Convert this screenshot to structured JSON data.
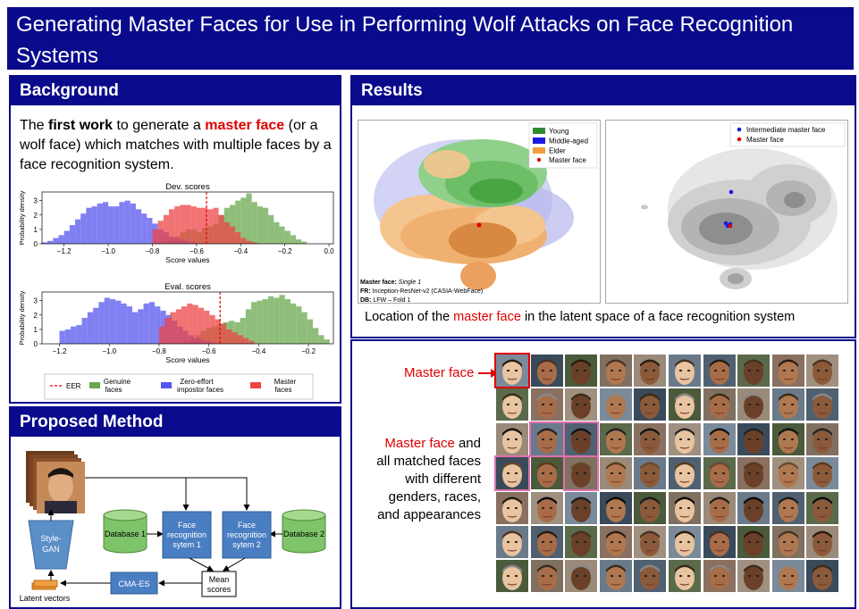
{
  "title": "Generating Master Faces for Use in Performing Wolf Attacks on Face Recognition Systems",
  "background": {
    "heading": "Background",
    "text_pre": "The ",
    "text_bold": "first work",
    "text_mid": " to generate a ",
    "text_red": "master face",
    "text_post": " (or a wolf face) which matches with multiple faces by a face recognition system."
  },
  "results": {
    "heading": "Results",
    "latent_caption_pre": "Location of the ",
    "latent_caption_red": "master face",
    "latent_caption_post": " in the latent space of a face recognition system",
    "left_legend": [
      "Young",
      "Middle-aged",
      "Elder",
      "Master face"
    ],
    "right_legend": [
      "Intermediate master face",
      "Master face"
    ],
    "info_master_label": "Master face: ",
    "info_master_value": "Single 1",
    "info_fr_label": "FR: ",
    "info_fr_value": "Inception-ResNet-v2 (CASIA-WebFace)",
    "info_db_label": "DB: ",
    "info_db_value": "LFW – Fold 1",
    "grid_master_label": "Master face",
    "grid_text_red": "Master face",
    "grid_text_1": " and",
    "grid_text_2": "all matched faces",
    "grid_text_3": "with different",
    "grid_text_4": "genders, races,",
    "grid_text_5": "and appearances"
  },
  "method": {
    "heading": "Proposed Method",
    "stylegan": "Style-GAN",
    "stylegan_l1": "Style-",
    "stylegan_l2": "GAN",
    "latent": "Latent vectors",
    "db1": "Database 1",
    "db2": "Database 2",
    "frs1_l1": "Face",
    "frs1_l2": "recognition",
    "frs1_l3": "sytem 1",
    "frs2_l1": "Face",
    "frs2_l2": "recognition",
    "frs2_l3": "sytem 2",
    "cmaes": "CMA-ES",
    "mean_l1": "Mean",
    "mean_l2": "scores"
  },
  "chart_data": [
    {
      "type": "bar",
      "title": "Dev. scores",
      "xlabel": "Score values",
      "ylabel": "Probability density",
      "xlim": [
        -1.3,
        0.02
      ],
      "ylim": [
        0,
        3.6
      ],
      "xticks": [
        -1.2,
        -1.0,
        -0.8,
        -0.6,
        -0.4,
        -0.2,
        0.0
      ],
      "xtick_labels": [
        "−1.2",
        "−1.0",
        "−0.8",
        "−0.6",
        "−0.4",
        "−0.2",
        "0.0"
      ],
      "yticks": [
        0,
        1,
        2,
        3
      ],
      "eer_x": -0.555,
      "series": [
        {
          "name": "Genuine faces",
          "color": "#6aa84f",
          "bin_start": -0.8,
          "bin_width": 0.025,
          "values": [
            0.1,
            0.15,
            0.3,
            0.3,
            0.5,
            0.8,
            1.0,
            1.0,
            0.8,
            1.1,
            1.2,
            1.4,
            2.0,
            2.5,
            2.7,
            3.0,
            3.2,
            3.5,
            2.9,
            2.6,
            2.5,
            2.0,
            1.5,
            1.2,
            0.9,
            0.6,
            0.3,
            0.15
          ]
        },
        {
          "name": "Zero-effort impostor faces",
          "color": "#5555ee",
          "bin_start": -1.3,
          "bin_width": 0.025,
          "values": [
            0.1,
            0.2,
            0.4,
            0.6,
            0.9,
            1.3,
            1.7,
            2.1,
            2.5,
            2.6,
            2.8,
            2.9,
            2.6,
            2.6,
            2.9,
            3.0,
            2.8,
            2.4,
            2.1,
            1.8,
            1.4,
            1.0,
            0.8,
            0.5,
            0.4,
            0.3,
            0.2,
            0.1
          ]
        },
        {
          "name": "Master faces",
          "color": "#ee4444",
          "bin_start": -0.8,
          "bin_width": 0.025,
          "values": [
            1.0,
            1.6,
            2.0,
            2.4,
            2.6,
            2.7,
            2.7,
            2.6,
            2.5,
            2.5,
            2.4,
            2.5,
            2.0,
            1.5,
            1.2,
            0.8,
            0.4,
            0.2,
            0.1
          ]
        }
      ],
      "legend": [
        "EER",
        "Genuine faces",
        "Zero-effort impostor faces",
        "Master faces"
      ]
    },
    {
      "type": "bar",
      "title": "Eval. scores",
      "xlabel": "Score values",
      "ylabel": "Probability density",
      "xlim": [
        -1.27,
        -0.1
      ],
      "ylim": [
        0,
        3.6
      ],
      "xticks": [
        -1.2,
        -1.0,
        -0.8,
        -0.6,
        -0.4,
        -0.2
      ],
      "xtick_labels": [
        "−1.2",
        "−1.0",
        "−0.8",
        "−0.6",
        "−0.4",
        "−0.2"
      ],
      "yticks": [
        0,
        1,
        2,
        3
      ],
      "eer_x": -0.555,
      "series": [
        {
          "name": "Genuine faces",
          "color": "#6aa84f",
          "bin_start": -0.7,
          "bin_width": 0.0225,
          "values": [
            0.2,
            0.4,
            0.6,
            0.9,
            1.1,
            1.2,
            1.4,
            1.5,
            1.6,
            1.5,
            1.8,
            2.4,
            2.9,
            3.0,
            3.1,
            3.3,
            3.2,
            3.4,
            3.1,
            2.8,
            2.6,
            2.2,
            1.7,
            1.1,
            0.6,
            0.3
          ]
        },
        {
          "name": "Zero-effort impostor faces",
          "color": "#5555ee",
          "bin_start": -1.2,
          "bin_width": 0.0225,
          "values": [
            0.9,
            1.0,
            1.2,
            1.3,
            1.8,
            2.2,
            2.5,
            2.9,
            3.2,
            3.1,
            3.0,
            2.8,
            2.6,
            2.2,
            2.4,
            2.8,
            2.9,
            2.6,
            2.3,
            2.0,
            1.6,
            1.2,
            0.9,
            0.6,
            0.4,
            0.3,
            0.2,
            0.1
          ]
        },
        {
          "name": "Master faces",
          "color": "#ee4444",
          "bin_start": -0.8,
          "bin_width": 0.0225,
          "values": [
            1.2,
            1.8,
            2.2,
            2.4,
            2.6,
            2.8,
            2.7,
            2.5,
            2.3,
            2.0,
            1.7,
            1.4,
            1.0,
            0.8,
            0.6,
            0.4,
            0.2
          ]
        }
      ],
      "legend": [
        "EER",
        "Genuine faces",
        "Zero-effort impostor faces",
        "Master faces"
      ]
    }
  ]
}
